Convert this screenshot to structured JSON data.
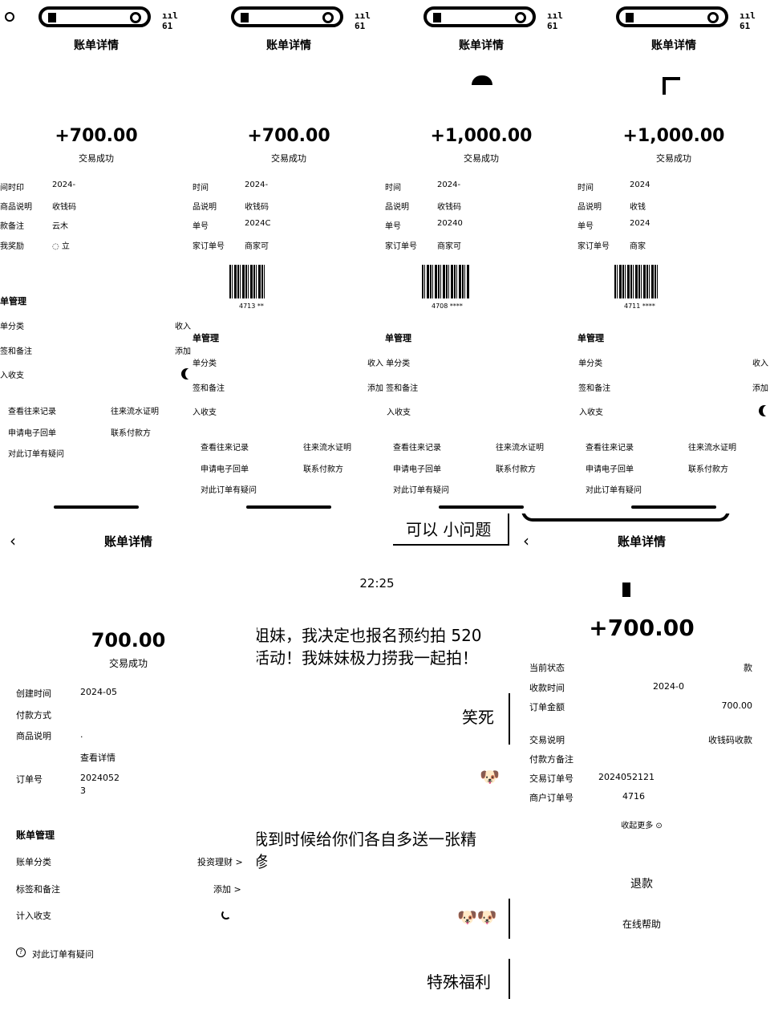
{
  "top_panels": [
    {
      "status_signal": "ııl 61",
      "title": "账单详情",
      "amount": "+700.00",
      "status": "交易成功",
      "rows": [
        {
          "label": "间时印",
          "value": "2024-"
        },
        {
          "label": "商品说明",
          "value": "收钱码"
        },
        {
          "label": "款备注",
          "value": "云木"
        },
        {
          "label": "我奖励",
          "value": "◌ 立"
        }
      ],
      "section_title": "单管理",
      "items": [
        "单分类",
        "签和备注",
        "入收支"
      ],
      "links": [
        "查看往来记录",
        "往来流水证明",
        "申请电子回单",
        "联系付款方",
        "对此订单有疑问"
      ],
      "side": [
        "收入",
        "添加"
      ]
    },
    {
      "status_signal": "ııl 61",
      "title": "账单详情",
      "amount": "+700.00",
      "status": "交易成功",
      "rows": [
        {
          "label": "时间",
          "value": "2024-"
        },
        {
          "label": "品说明",
          "value": "收钱码"
        },
        {
          "label": "单号",
          "value": "2024C"
        },
        {
          "label": "家订单号",
          "value": "商家可"
        }
      ],
      "barcode_num": "4713 **",
      "section_title": "单管理",
      "items": [
        "单分类",
        "签和备注",
        "入收支"
      ],
      "links": [
        "查看往来记录",
        "往来流水证明",
        "申请电子回单",
        "联系付款方",
        "对此订单有疑问"
      ],
      "side": [
        "收入",
        "添加"
      ]
    },
    {
      "status_signal": "ııl 61",
      "title": "账单详情",
      "amount": "+1,000.00",
      "status": "交易成功",
      "rows": [
        {
          "label": "时间",
          "value": "2024-"
        },
        {
          "label": "品说明",
          "value": "收钱码"
        },
        {
          "label": "单号",
          "value": "20240"
        },
        {
          "label": "家订单号",
          "value": "商家可"
        }
      ],
      "barcode_num": "4708 ****",
      "section_title": "单管理",
      "items": [
        "收入 单分类",
        "添加 签和备注",
        "入收支"
      ],
      "links": [
        "查看往来记录",
        "往来流水证明",
        "申请电子回单",
        "联系付款方",
        "对此订单有疑问"
      ],
      "side": []
    },
    {
      "status_signal": "ııl 61",
      "title": "账单详情",
      "amount": "+1,000.00",
      "status": "交易成功",
      "rows": [
        {
          "label": "时间",
          "value": "2024"
        },
        {
          "label": "品说明",
          "value": "收钱"
        },
        {
          "label": "单号",
          "value": "2024"
        },
        {
          "label": "家订单号",
          "value": "商家"
        }
      ],
      "barcode_num": "4711 ****",
      "section_title": "单管理",
      "items": [
        "收入 单分类",
        "添加 签和备注",
        "入收支"
      ],
      "links": [
        "查看往来记录",
        "往来流水证明",
        "申请电子回单",
        "联系付款方",
        "对此订单有疑问"
      ],
      "side": [
        "收入",
        "添加"
      ]
    }
  ],
  "bottom_left": {
    "title": "账单详情",
    "amount": "700.00",
    "status": "交易成功",
    "rows": [
      {
        "label": "创建时间",
        "value": "2024-05"
      },
      {
        "label": "付款方式",
        "value": ""
      },
      {
        "label": "商品说明",
        "value": "."
      },
      {
        "label": "",
        "value": "查看详情"
      },
      {
        "label": "订单号",
        "value": "2024052"
      },
      {
        "label": "",
        "value": "3"
      }
    ],
    "section_title": "账单管理",
    "items": [
      {
        "label": "账单分类",
        "value": "投资理财 >"
      },
      {
        "label": "标签和备注",
        "value": "添加 >"
      },
      {
        "label": "计入收支",
        "value": ""
      }
    ],
    "question": "对此订单有疑问"
  },
  "bottom_mid": {
    "top_bubble": "可以 小问题",
    "time": "22:25",
    "msg1_line1": "姐妹，我决定也报名预约拍 520",
    "msg1_line2": "活动！我妹妹极力捞我一起拍！",
    "reply1": "笑死",
    "msg2_line1": "我到时候给你们各自多送一张精",
    "msg2_line2": "修",
    "reply2": "特殊福利"
  },
  "bottom_right": {
    "title": "账单详情",
    "amount": "+700.00",
    "rows": [
      {
        "label": "当前状态",
        "value": "款"
      },
      {
        "label": "收款时间",
        "value": "2024-0"
      },
      {
        "label": "订单金额",
        "value": "700.00"
      },
      {
        "label": "交易说明",
        "value": "收钱码收款"
      },
      {
        "label": "付款方备注",
        "value": ""
      },
      {
        "label": "交易订单号",
        "value": "2024052121"
      },
      {
        "label": "商户订单号",
        "value": "4716"
      }
    ],
    "collapse": "收起更多 ⊙",
    "refund": "退款",
    "help": "在线帮助"
  }
}
